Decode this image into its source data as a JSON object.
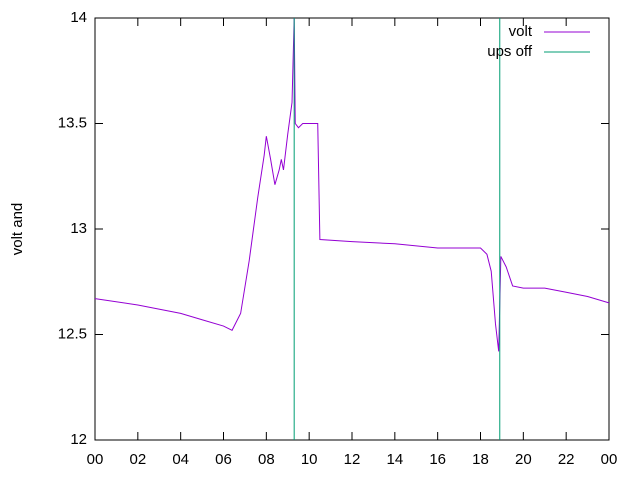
{
  "chart_data": {
    "type": "line",
    "ylabel": "volt and",
    "xlim": [
      0,
      24
    ],
    "xticks": [
      {
        "value": 0,
        "label": "00"
      },
      {
        "value": 2,
        "label": "02"
      },
      {
        "value": 4,
        "label": "04"
      },
      {
        "value": 6,
        "label": "06"
      },
      {
        "value": 8,
        "label": "08"
      },
      {
        "value": 10,
        "label": "10"
      },
      12,
      14,
      16,
      18,
      20,
      22,
      {
        "value": 24,
        "label": "00"
      }
    ],
    "ylim": [
      12,
      14
    ],
    "yticks": [
      12,
      12.5,
      13,
      13.5,
      14
    ],
    "legend": "upper right",
    "series": [
      {
        "name": "volt",
        "color": "#9400d3",
        "x": [
          0,
          2,
          4,
          5,
          6,
          6.4,
          6.8,
          7.2,
          7.4,
          7.6,
          7.9,
          8.0,
          8.2,
          8.4,
          8.6,
          8.7,
          8.8,
          9.0,
          9.2,
          9.3,
          9.35,
          9.5,
          9.7,
          10.0,
          10.4,
          10.5,
          12,
          14,
          16,
          18,
          18.3,
          18.5,
          18.7,
          18.85,
          18.95,
          19.2,
          19.5,
          20,
          21,
          22,
          23,
          24
        ],
        "values": [
          12.67,
          12.64,
          12.6,
          12.57,
          12.54,
          12.52,
          12.6,
          12.85,
          13.0,
          13.15,
          13.35,
          13.44,
          13.33,
          13.21,
          13.28,
          13.33,
          13.28,
          13.45,
          13.6,
          14.0,
          13.5,
          13.48,
          13.5,
          13.5,
          13.5,
          12.95,
          12.94,
          12.93,
          12.91,
          12.91,
          12.88,
          12.8,
          12.55,
          12.42,
          12.87,
          12.82,
          12.73,
          12.72,
          12.72,
          12.7,
          12.68,
          12.65
        ]
      },
      {
        "name": "ups off",
        "color": "#009e73",
        "x": [
          9.3,
          9.3,
          9.3,
          18.9,
          18.9
        ],
        "values": [
          12,
          14,
          null,
          12,
          14
        ]
      }
    ]
  }
}
